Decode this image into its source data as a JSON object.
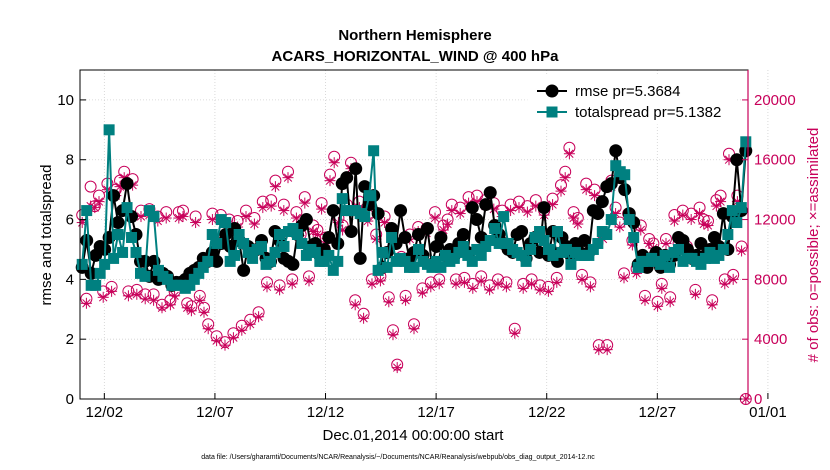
{
  "chart_data": {
    "type": "line",
    "title": [
      "Northern Hemisphere",
      "ACARS_HORIZONTAL_WIND @ 400 hPa"
    ],
    "xlabel": "Dec.01,2014 00:00:00 start",
    "ylabel": "rmse and totalspread",
    "ylabel_right": "# of obs: o=possible; ×=assimilated",
    "xlim": [
      -0.1,
      30.1
    ],
    "ylim": [
      0,
      11
    ],
    "ylim_right": [
      0,
      22000
    ],
    "yticks_left": [
      0,
      2,
      4,
      6,
      8,
      10
    ],
    "yticks_right": [
      0,
      4000,
      8000,
      12000,
      16000,
      20000
    ],
    "xticks": [
      {
        "value": 1,
        "label": "12/02"
      },
      {
        "value": 6,
        "label": "12/07"
      },
      {
        "value": 11,
        "label": "12/12"
      },
      {
        "value": 16,
        "label": "12/17"
      },
      {
        "value": 21,
        "label": "12/22"
      },
      {
        "value": 26,
        "label": "12/27"
      },
      {
        "value": 31,
        "label": "01/01"
      }
    ],
    "grid": true,
    "legend_position": "top-right",
    "footnote": "data file: /Users/gharamti/Documents/NCAR/Reanalysis/~/Documents/NCAR/Reanalysis/webpub/obs_diag_output_2014-12.nc",
    "colors": {
      "rmse": "#000000",
      "totalspread": "#008080",
      "obs": "#c8005a",
      "grid": "#d0d0d0"
    },
    "series": [
      {
        "name": "rmse",
        "legend": "rmse pr=5.3684",
        "role": "left",
        "marker": "circle",
        "color": "#000000",
        "values": [
          4.4,
          5.3,
          4.2,
          4.8,
          5.1,
          5.0,
          5.4,
          6.8,
          5.9,
          6.3,
          7.2,
          6.1,
          5.5,
          4.6,
          4.6,
          4.1,
          4.6,
          4.0,
          4.2,
          4.1,
          3.8,
          3.9,
          3.9,
          4.0,
          4.2,
          4.3,
          4.4,
          4.7,
          4.6,
          4.9,
          4.6,
          5.2,
          5.5,
          5.1,
          5.7,
          5.3,
          4.3,
          5.1,
          4.9,
          5.0,
          5.3,
          4.7,
          4.6,
          5.6,
          5.3,
          4.7,
          4.6,
          4.5,
          5.5,
          5.8,
          6.0,
          5.1,
          5.2,
          4.8,
          5.0,
          5.4,
          6.3,
          5.2,
          7.2,
          7.4,
          5.6,
          7.7,
          4.7,
          7.1,
          6.5,
          6.8,
          6.2,
          4.4,
          4.9,
          5.7,
          5.2,
          6.3,
          5.4,
          4.7,
          4.9,
          5.5,
          4.8,
          5.7,
          4.5,
          5.1,
          5.4,
          4.8,
          5.0,
          4.8,
          5.2,
          5.5,
          4.9,
          6.4,
          6.0,
          5.4,
          6.5,
          6.9,
          5.8,
          5.5,
          5.2,
          5.0,
          4.9,
          5.5,
          5.6,
          4.7,
          5.2,
          5.4,
          4.9,
          6.4,
          4.8,
          5.6,
          4.6,
          5.4,
          5.1,
          4.8,
          5.2,
          4.9,
          5.3,
          4.9,
          6.3,
          6.2,
          6.6,
          7.1,
          7.2,
          8.3,
          7.4,
          7.0,
          6.2,
          5.9,
          4.5,
          4.8,
          4.4,
          4.7,
          4.9,
          4.4,
          4.8,
          4.5,
          4.8,
          5.4,
          5.3,
          5.0,
          4.7,
          4.8,
          5.2,
          4.8,
          5.0,
          5.4,
          5.1,
          6.2,
          5.0,
          6.1,
          8.0,
          6.3,
          8.3
        ]
      },
      {
        "name": "totalspread",
        "legend": "totalspread pr=5.1382",
        "role": "left",
        "marker": "square",
        "color": "#008080",
        "values": [
          4.5,
          6.3,
          3.8,
          3.8,
          4.2,
          4.5,
          9.0,
          4.7,
          5.5,
          4.9,
          6.4,
          5.4,
          4.9,
          4.2,
          4.1,
          6.3,
          6.1,
          4.3,
          4.1,
          4.0,
          3.8,
          3.8,
          3.8,
          3.7,
          3.8,
          4.0,
          4.2,
          4.4,
          4.6,
          5.5,
          5.2,
          6.0,
          5.9,
          4.6,
          4.8,
          5.5,
          5.2,
          4.9,
          4.7,
          5.0,
          5.1,
          4.5,
          4.6,
          4.9,
          5.5,
          5.1,
          5.6,
          5.7,
          5.5,
          5.2,
          4.8,
          5.0,
          4.9,
          4.6,
          4.6,
          4.8,
          4.3,
          4.6,
          6.7,
          6.3,
          6.3,
          6.3,
          6.2,
          6.1,
          6.8,
          8.3,
          4.3,
          4.9,
          4.4,
          5.4,
          4.6,
          4.7,
          4.6,
          4.4,
          4.4,
          5.0,
          4.6,
          4.5,
          4.4,
          4.6,
          4.4,
          4.8,
          4.6,
          4.7,
          4.9,
          5.1,
          4.8,
          4.6,
          5.0,
          4.8,
          5.1,
          5.3,
          5.7,
          5.2,
          6.1,
          5.2,
          5.0,
          4.9,
          4.8,
          4.6,
          5.0,
          5.4,
          5.6,
          5.3,
          5.0,
          4.8,
          5.6,
          4.9,
          5.0,
          4.5,
          4.9,
          4.8,
          4.8,
          4.8,
          5.0,
          5.2,
          5.6,
          5.5,
          6.0,
          7.8,
          7.6,
          7.5,
          6.0,
          5.4,
          4.4,
          4.6,
          4.6,
          4.7,
          4.6,
          4.5,
          4.8,
          4.4,
          4.9,
          5.0,
          4.6,
          4.7,
          4.7,
          4.6,
          4.5,
          4.7,
          4.9,
          4.7,
          4.8,
          5.0,
          5.5,
          6.3,
          5.9,
          6.4,
          8.6
        ]
      },
      {
        "name": "obs_possible",
        "role": "right",
        "marker": "open-circle",
        "color": "#c8005a",
        "values": [
          12300,
          6700,
          14200,
          12900,
          13600,
          7200,
          14400,
          7500,
          14000,
          14600,
          15200,
          7200,
          14700,
          7300,
          12600,
          7000,
          12700,
          7000,
          12200,
          6300,
          12500,
          6600,
          7200,
          12500,
          12600,
          6400,
          6200,
          12200,
          6900,
          6100,
          5000,
          12400,
          4200,
          12300,
          3800,
          12000,
          4400,
          11900,
          4900,
          12600,
          5300,
          12100,
          5800,
          13200,
          7800,
          13300,
          14600,
          7600,
          13000,
          15200,
          8000,
          12500,
          11000,
          13500,
          8200,
          11600,
          11300,
          13100,
          10800,
          15000,
          16200,
          12100,
          11600,
          13000,
          15800,
          6600,
          13200,
          5700,
          12300,
          8000,
          11000,
          8200,
          12200,
          6800,
          4600,
          2300,
          9500,
          6900,
          11000,
          5000,
          11500,
          7400,
          11400,
          7800,
          12500,
          8000,
          11600,
          12000,
          13000,
          8000,
          12800,
          8100,
          13500,
          7700,
          13600,
          8200,
          13300,
          7600,
          13100,
          8000,
          12600,
          7800,
          13000,
          4700,
          13200,
          7700,
          12900,
          8000,
          13300,
          7600,
          12600,
          7500,
          13400,
          8100,
          14300,
          15200,
          16800,
          12500,
          12100,
          8300,
          14400,
          7800,
          14000,
          3600,
          11000,
          3600,
          14600,
          12800,
          11800,
          8400,
          12400,
          10600,
          8700,
          11600,
          6900,
          10700,
          10400,
          6500,
          7700,
          10700,
          6800,
          12300,
          10400,
          12600,
          10200,
          12400,
          7300,
          12800,
          12000,
          11900,
          6600,
          13300,
          13600,
          8000,
          16400,
          8300,
          13600,
          10200,
          0
        ]
      },
      {
        "name": "obs_assimilated",
        "role": "right",
        "marker": "asterisk",
        "color": "#c8005a",
        "values": [
          11800,
          6400,
          12900,
          12800,
          13200,
          6800,
          14000,
          7200,
          13600,
          14200,
          14800,
          6900,
          14300,
          7000,
          12200,
          6700,
          12300,
          6600,
          11900,
          6100,
          12100,
          6300,
          6900,
          12100,
          12200,
          6100,
          5900,
          11800,
          6600,
          5800,
          4700,
          12000,
          3900,
          11900,
          3600,
          11700,
          4100,
          11500,
          4600,
          12200,
          5000,
          11700,
          5500,
          12800,
          7500,
          12900,
          14200,
          7300,
          12600,
          14800,
          7700,
          12100,
          10700,
          13100,
          7900,
          11200,
          11000,
          12700,
          10500,
          14600,
          15800,
          11800,
          11300,
          12600,
          15400,
          6300,
          12800,
          5400,
          11900,
          7700,
          10700,
          7900,
          11800,
          6500,
          4300,
          2100,
          9200,
          6600,
          10700,
          4700,
          11200,
          7100,
          11100,
          7500,
          12100,
          7700,
          11300,
          11700,
          12600,
          7700,
          12400,
          7800,
          13100,
          7400,
          13200,
          7900,
          12900,
          7300,
          12700,
          7700,
          12200,
          7500,
          12600,
          4400,
          12800,
          7400,
          12500,
          7700,
          12900,
          7300,
          12300,
          7200,
          13000,
          7800,
          13900,
          14800,
          16400,
          12100,
          11700,
          8000,
          14000,
          7500,
          13600,
          3300,
          10700,
          3300,
          14200,
          12400,
          11500,
          8100,
          12000,
          10300,
          8400,
          11300,
          6600,
          10400,
          10100,
          6200,
          7400,
          10400,
          6500,
          11900,
          10100,
          12300,
          9900,
          12000,
          7000,
          12400,
          11700,
          11600,
          6300,
          12900,
          13200,
          7700,
          16000,
          8000,
          13200,
          9900,
          0
        ]
      }
    ]
  }
}
